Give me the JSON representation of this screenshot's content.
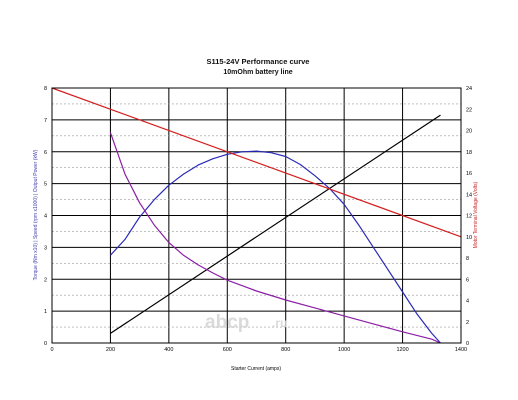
{
  "chart_data": {
    "type": "line",
    "title": "S115-24V Performance  curve",
    "subtitle": "10mOhm battery line",
    "xlabel": "Starter Current (amps)",
    "ylabel_left": "Torque (Nm x10) | Speed (rpm x1000) | Output Power (kW)",
    "ylabel_right": "Motor Terminal Voltage (Volts)",
    "xlim": [
      0,
      1400
    ],
    "ylim_left": [
      0,
      8
    ],
    "ylim_right": [
      0,
      24
    ],
    "x_ticks": [
      "0",
      "200",
      "400",
      "600",
      "800",
      "1000",
      "1200",
      "1400"
    ],
    "y_left_ticks": [
      "0",
      "1",
      "2",
      "3",
      "4",
      "5",
      "6",
      "7",
      "8"
    ],
    "y_right_ticks": [
      "0",
      "2",
      "4",
      "6",
      "8",
      "10",
      "12",
      "14",
      "16",
      "18",
      "20",
      "22",
      "24"
    ],
    "grid": true,
    "series": [
      {
        "color": "#000000",
        "axis": "left",
        "x": [
          200,
          1330
        ],
        "y": [
          0.3,
          7.15
        ]
      },
      {
        "color": "#2a2ab8",
        "axis": "left",
        "x": [
          200,
          250,
          300,
          350,
          400,
          450,
          500,
          550,
          600,
          650,
          700,
          750,
          800,
          850,
          900,
          950,
          1000,
          1050,
          1100,
          1150,
          1200,
          1250,
          1300,
          1330
        ],
        "y": [
          2.75,
          3.25,
          3.95,
          4.5,
          4.95,
          5.3,
          5.58,
          5.78,
          5.92,
          6.0,
          6.02,
          5.97,
          5.85,
          5.6,
          5.25,
          4.85,
          4.35,
          3.7,
          3.0,
          2.3,
          1.6,
          0.9,
          0.3,
          0.0
        ]
      },
      {
        "color": "#8b1fa6",
        "axis": "left",
        "x": [
          200,
          250,
          300,
          350,
          400,
          450,
          500,
          550,
          600,
          650,
          700,
          800,
          900,
          1000,
          1100,
          1200,
          1300,
          1330
        ],
        "y": [
          6.6,
          5.3,
          4.4,
          3.7,
          3.15,
          2.75,
          2.45,
          2.2,
          1.97,
          1.8,
          1.63,
          1.35,
          1.1,
          0.85,
          0.6,
          0.35,
          0.12,
          0.0
        ]
      },
      {
        "color": "#d42020",
        "axis": "right",
        "x": [
          0,
          1400
        ],
        "y": [
          24.0,
          10.0
        ]
      }
    ]
  },
  "watermark": {
    "text": "abcp",
    "suffix": ".ru"
  }
}
